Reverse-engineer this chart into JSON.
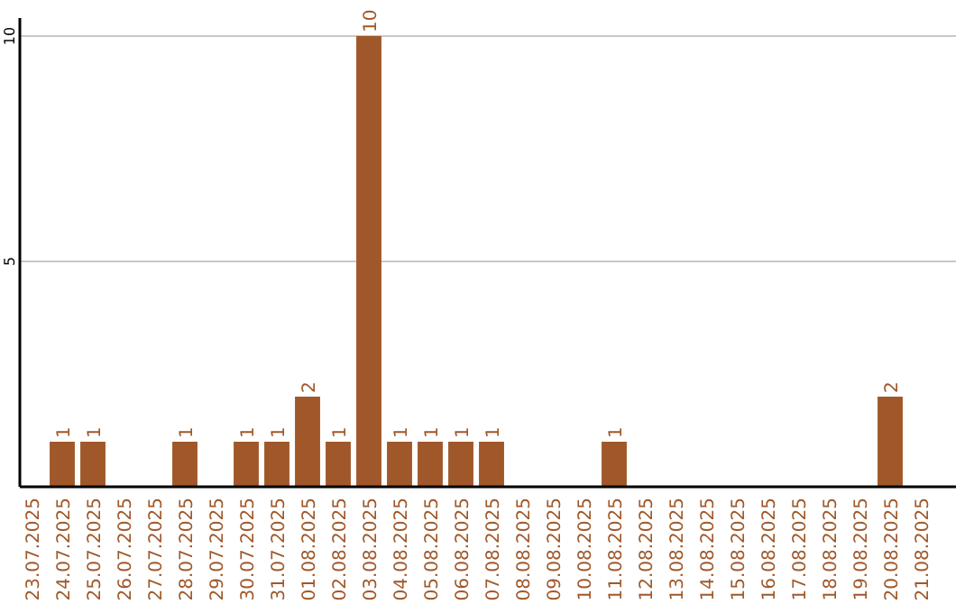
{
  "chart_data": {
    "type": "bar",
    "categories": [
      "23.07.2025",
      "24.07.2025",
      "25.07.2025",
      "26.07.2025",
      "27.07.2025",
      "28.07.2025",
      "29.07.2025",
      "30.07.2025",
      "31.07.2025",
      "01.08.2025",
      "02.08.2025",
      "03.08.2025",
      "04.08.2025",
      "05.08.2025",
      "06.08.2025",
      "07.08.2025",
      "08.08.2025",
      "09.08.2025",
      "10.08.2025",
      "11.08.2025",
      "12.08.2025",
      "13.08.2025",
      "14.08.2025",
      "15.08.2025",
      "16.08.2025",
      "17.08.2025",
      "18.08.2025",
      "19.08.2025",
      "20.08.2025",
      "21.08.2025"
    ],
    "values": [
      0,
      1,
      1,
      0,
      0,
      1,
      0,
      1,
      1,
      2,
      1,
      10,
      1,
      1,
      1,
      1,
      0,
      0,
      0,
      1,
      0,
      0,
      0,
      0,
      0,
      0,
      0,
      0,
      2,
      0
    ],
    "value_labels": [
      null,
      "1",
      "1",
      null,
      null,
      "1",
      null,
      "1",
      "1",
      "2",
      "1",
      "10",
      "1",
      "1",
      "1",
      "1",
      null,
      null,
      null,
      "1",
      null,
      null,
      null,
      null,
      null,
      null,
      null,
      null,
      "2",
      null
    ],
    "color": "#a0582a",
    "ylim": [
      0,
      10.4
    ],
    "yticks": [
      5,
      10
    ],
    "grid": "y"
  }
}
